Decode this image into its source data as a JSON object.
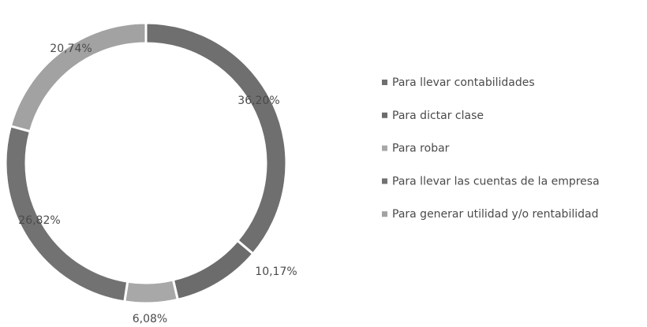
{
  "chart_data": {
    "type": "donut",
    "categories": [
      "Para llevar contabilidades",
      "Para dictar clase",
      "Para robar",
      "Para llevar las cuentas de la empresa",
      "Para generar utilidad y/o rentabilidad"
    ],
    "values": [
      36.2,
      10.17,
      6.08,
      26.82,
      20.74
    ],
    "value_labels": [
      "36,20%",
      "10,17%",
      "6,08%",
      "26,82%",
      "20,74%"
    ],
    "colors": [
      "#6f6f6f",
      "#6c6c6c",
      "#a8a8a8",
      "#727272",
      "#a2a2a2"
    ],
    "legend": "right"
  }
}
